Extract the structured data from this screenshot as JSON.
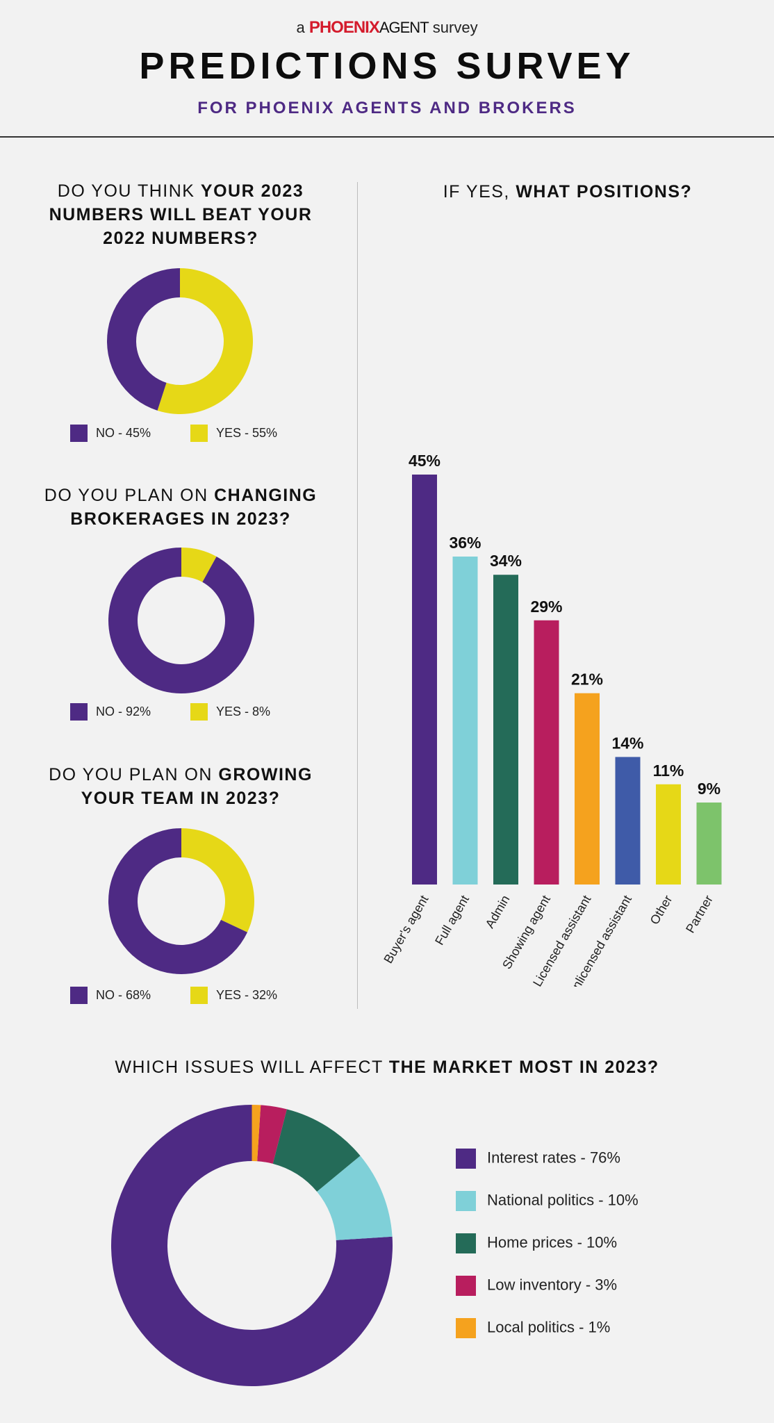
{
  "header": {
    "brand_prefix": "a",
    "brand_name": "PHOENIX",
    "brand_name2": "AGENT",
    "brand_suffix": "survey",
    "title": "PREDICTIONS SURVEY",
    "subtitle": "FOR PHOENIX AGENTS AND BROKERS"
  },
  "colors": {
    "purple": "#4e2a84",
    "yellow": "#e6d817",
    "cyan": "#7fd0d8",
    "dark_green": "#246b58",
    "magenta": "#b81e5e",
    "orange": "#f5a21e",
    "blue": "#3f5ba8",
    "light_green": "#7dc36b"
  },
  "questions": [
    {
      "title_plain": "DO YOU THINK ",
      "title_bold": "YOUR 2023 NUMBERS WILL BEAT YOUR 2022 NUMBERS?",
      "legend": [
        {
          "label": "NO - 45%"
        },
        {
          "label": "YES - 55%"
        }
      ]
    },
    {
      "title_plain": "DO YOU PLAN ON ",
      "title_bold": "CHANGING BROKERAGES IN 2023?",
      "legend": [
        {
          "label": "NO - 92%"
        },
        {
          "label": "YES - 8%"
        }
      ]
    },
    {
      "title_plain": "DO YOU PLAN ON ",
      "title_bold": "GROWING YOUR TEAM IN 2023?",
      "legend": [
        {
          "label": "NO - 68%"
        },
        {
          "label": "YES - 32%"
        }
      ]
    }
  ],
  "bar_section": {
    "title_plain": "IF YES, ",
    "title_bold": "WHAT POSITIONS?"
  },
  "bottom_section": {
    "title_plain": "WHICH ISSUES WILL AFFECT ",
    "title_bold": "THE MARKET MOST IN 2023?",
    "legend": [
      {
        "label": "Interest rates - 76%"
      },
      {
        "label": "National politics - 10%"
      },
      {
        "label": "Home prices - 10%"
      },
      {
        "label": "Low inventory - 3%"
      },
      {
        "label": "Local politics - 1%"
      }
    ]
  },
  "chart_data": [
    {
      "type": "pie",
      "title": "DO YOU THINK YOUR 2023 NUMBERS WILL BEAT YOUR 2022 NUMBERS?",
      "categories": [
        "NO",
        "YES"
      ],
      "values": [
        45,
        55
      ],
      "colors": [
        "#4e2a84",
        "#e6d817"
      ]
    },
    {
      "type": "pie",
      "title": "DO YOU PLAN ON CHANGING BROKERAGES IN 2023?",
      "categories": [
        "NO",
        "YES"
      ],
      "values": [
        92,
        8
      ],
      "colors": [
        "#4e2a84",
        "#e6d817"
      ]
    },
    {
      "type": "pie",
      "title": "DO YOU PLAN ON GROWING YOUR TEAM IN 2023?",
      "categories": [
        "NO",
        "YES"
      ],
      "values": [
        68,
        32
      ],
      "colors": [
        "#4e2a84",
        "#e6d817"
      ]
    },
    {
      "type": "bar",
      "title": "IF YES, WHAT POSITIONS?",
      "categories": [
        "Buyer's agent",
        "Full agent",
        "Admin",
        "Showing agent",
        "Licensed assistant",
        "Unlicensed assistant",
        "Other",
        "Partner"
      ],
      "values": [
        45,
        36,
        34,
        29,
        21,
        14,
        11,
        9
      ],
      "value_labels": [
        "45%",
        "36%",
        "34%",
        "29%",
        "21%",
        "14%",
        "11%",
        "9%"
      ],
      "colors": [
        "#4e2a84",
        "#7fd0d8",
        "#246b58",
        "#b81e5e",
        "#f5a21e",
        "#3f5ba8",
        "#e6d817",
        "#7dc36b"
      ],
      "ylim": [
        0,
        45
      ],
      "xlabel": "",
      "ylabel": ""
    },
    {
      "type": "pie",
      "title": "WHICH ISSUES WILL AFFECT THE MARKET MOST IN 2023?",
      "categories": [
        "Interest rates",
        "National politics",
        "Home prices",
        "Low inventory",
        "Local politics"
      ],
      "values": [
        76,
        10,
        10,
        3,
        1
      ],
      "colors": [
        "#4e2a84",
        "#7fd0d8",
        "#246b58",
        "#b81e5e",
        "#f5a21e"
      ]
    }
  ]
}
